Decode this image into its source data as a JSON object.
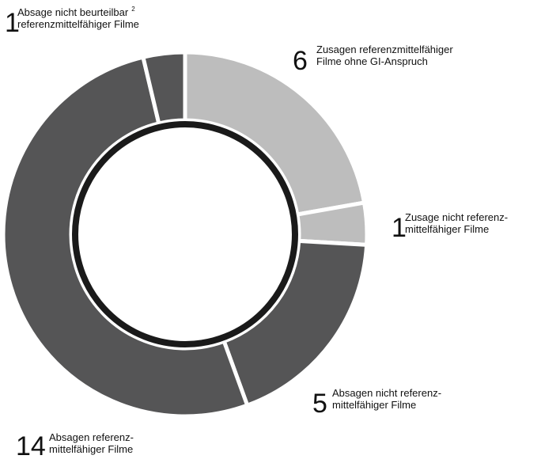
{
  "chart_data": {
    "type": "pie",
    "values": [
      6,
      1,
      5,
      14,
      1
    ],
    "colors": [
      "#bdbdbd",
      "#bdbdbd",
      "#555556",
      "#555556",
      "#555556"
    ],
    "label_lines": [
      [
        "Zusagen referenzmittelfähiger",
        "Filme ohne GI-Anspruch"
      ],
      [
        "Zusage nicht referenz-",
        "mittelfähiger Filme"
      ],
      [
        "Absagen nicht referenz-",
        "mittelfähiger Filme"
      ],
      [
        "Absagen referenz-",
        "mittelfähiger Filme"
      ],
      [
        "Absage nicht beurteilbar",
        "referenzmittelfähiger Filme"
      ]
    ],
    "footnote": "2"
  }
}
